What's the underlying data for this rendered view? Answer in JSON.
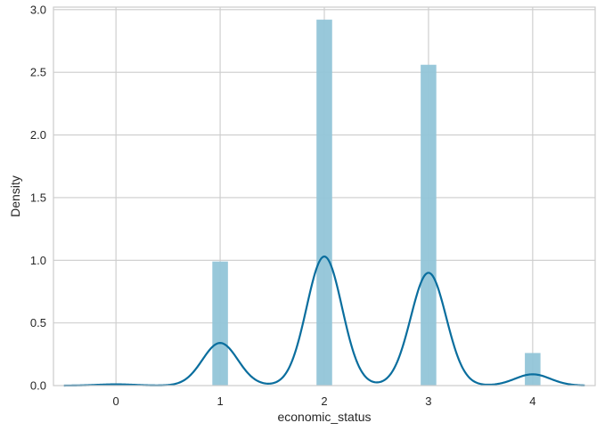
{
  "chart_data": {
    "type": "histogram",
    "xlabel": "economic_status",
    "ylabel": "Density",
    "xlim": [
      -0.6,
      4.6
    ],
    "ylim": [
      0,
      3.02
    ],
    "xticks": [
      "0",
      "1",
      "2",
      "3",
      "4"
    ],
    "yticks": [
      "0.0",
      "0.5",
      "1.0",
      "1.5",
      "2.0",
      "2.5",
      "3.0"
    ],
    "grid": true,
    "bar_color": "#92c5d8",
    "line_color": "#0a6e9e",
    "grid_color": "#cccccc",
    "bars": [
      {
        "x": 0.0,
        "density": 0.01
      },
      {
        "x": 1.0,
        "density": 0.99
      },
      {
        "x": 2.0,
        "density": 2.92
      },
      {
        "x": 3.0,
        "density": 2.56
      },
      {
        "x": 4.0,
        "density": 0.26
      }
    ],
    "bar_width": 0.15,
    "kde": {
      "x_range": [
        -0.5,
        4.5
      ],
      "peaks": [
        {
          "x": 0.0,
          "density": 0.01,
          "sigma": 0.18
        },
        {
          "x": 1.0,
          "density": 0.34,
          "sigma": 0.17
        },
        {
          "x": 2.0,
          "density": 1.03,
          "sigma": 0.17
        },
        {
          "x": 3.0,
          "density": 0.9,
          "sigma": 0.17
        },
        {
          "x": 4.0,
          "density": 0.09,
          "sigma": 0.17
        }
      ]
    }
  }
}
